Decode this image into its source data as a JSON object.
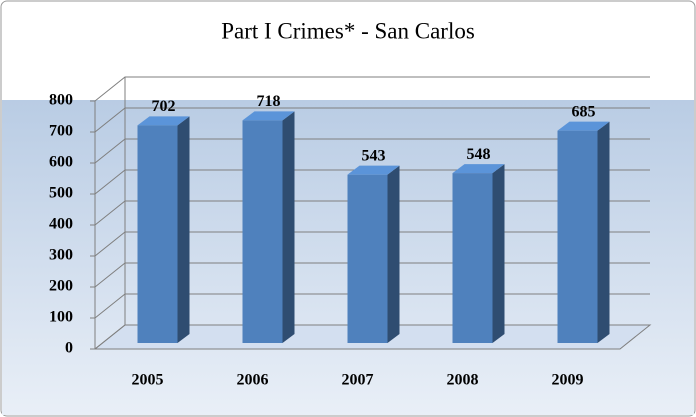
{
  "chart_data": {
    "type": "bar3d",
    "title": "Part I Crimes* - San Carlos",
    "categories": [
      "2005",
      "2006",
      "2007",
      "2008",
      "2009"
    ],
    "values": [
      702,
      718,
      543,
      548,
      685
    ],
    "color": "#4f81bd",
    "ylim": [
      0,
      800
    ],
    "yticks": [
      0,
      100,
      200,
      300,
      400,
      500,
      600,
      700,
      800
    ],
    "grid": true
  }
}
